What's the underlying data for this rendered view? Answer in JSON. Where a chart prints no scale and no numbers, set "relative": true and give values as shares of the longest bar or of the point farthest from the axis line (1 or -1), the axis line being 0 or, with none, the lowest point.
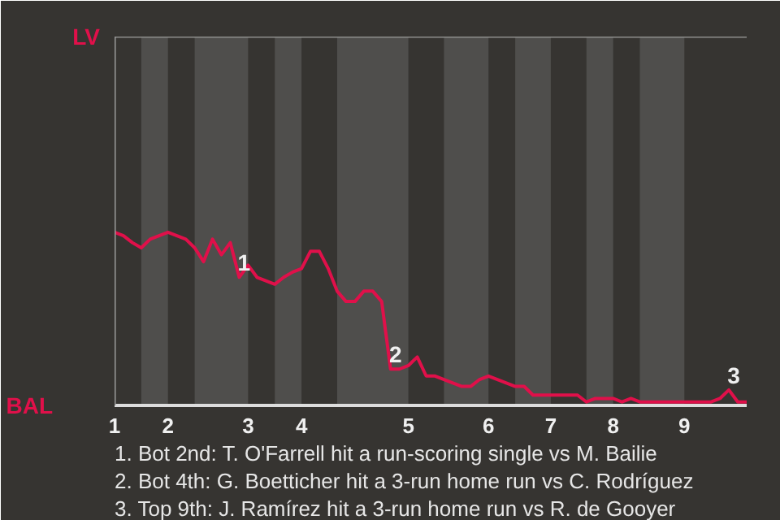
{
  "chart_data": {
    "type": "line",
    "relative": true,
    "categories": [
      "1",
      null,
      null,
      null,
      null,
      null,
      "2",
      null,
      null,
      null,
      null,
      null,
      null,
      null,
      null,
      "3",
      null,
      null,
      null,
      null,
      null,
      "4",
      null,
      null,
      null,
      null,
      null,
      null,
      null,
      null,
      null,
      null,
      null,
      "5",
      null,
      null,
      null,
      null,
      null,
      null,
      null,
      null,
      "6",
      null,
      null,
      null,
      null,
      null,
      null,
      "7",
      null,
      null,
      null,
      null,
      null,
      null,
      "8",
      null,
      null,
      null,
      null,
      null,
      null,
      null,
      "9",
      null,
      null,
      null,
      null,
      null,
      null,
      null
    ],
    "series": [
      {
        "color": "#e0104a",
        "values": [
          1,
          0.98,
          0.94,
          0.91,
          0.96,
          0.98,
          1,
          0.98,
          0.96,
          0.91,
          0.83,
          0.96,
          0.87,
          0.94,
          0.74,
          0.81,
          0.74,
          0.72,
          0.7,
          0.74,
          0.77,
          0.79,
          0.89,
          0.89,
          0.79,
          0.66,
          0.6,
          0.6,
          0.66,
          0.66,
          0.6,
          0.21,
          0.21,
          0.23,
          0.28,
          0.17,
          0.17,
          0.15,
          0.13,
          0.11,
          0.11,
          0.15,
          0.17,
          0.15,
          0.13,
          0.11,
          0.11,
          0.06,
          0.06,
          0.06,
          0.06,
          0.06,
          0.06,
          0.02,
          0.04,
          0.04,
          0.04,
          0.02,
          0.04,
          0.02,
          0.02,
          0.02,
          0.02,
          0.02,
          0.02,
          0.02,
          0.02,
          0.02,
          0.04,
          0.09,
          0.02,
          0.02
        ]
      }
    ],
    "annotations": [
      "LV",
      "BAL",
      {
        "text": "1",
        "y": 0.74
      },
      {
        "text": "2",
        "y": 0.21
      },
      {
        "text": "3",
        "y": 0.09
      },
      "1. Bot 2nd: T. O'Farrell hit a run-scoring single vs M. Bailie",
      "2. Bot 4th: G. Boetticher hit a 3-run home run vs C. Rodríguez",
      "3. Top 9th: J. Ramírez hit a 3-run home run vs R. de Gooyer"
    ]
  }
}
